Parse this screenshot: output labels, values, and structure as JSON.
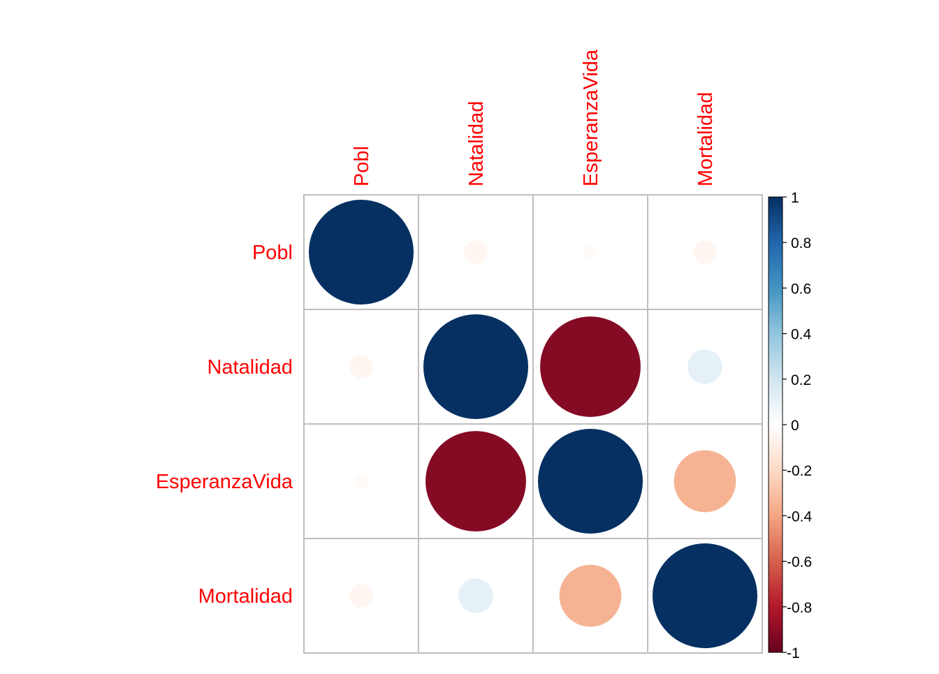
{
  "chart_data": {
    "type": "heatmap",
    "subtype": "correlation-circles",
    "variables": [
      "Pobl",
      "Natalidad",
      "EsperanzaVida",
      "Mortalidad"
    ],
    "matrix": [
      [
        1.0,
        -0.05,
        -0.02,
        -0.05
      ],
      [
        -0.05,
        1.0,
        -0.92,
        0.11
      ],
      [
        -0.02,
        -0.92,
        1.0,
        -0.35
      ],
      [
        -0.05,
        0.11,
        -0.35,
        1.0
      ]
    ],
    "label_color": "#FF0000",
    "grid_color": "#BEBEBE",
    "colorbar": {
      "range": [
        -1,
        1
      ],
      "ticks": [
        "1",
        "0.8",
        "0.6",
        "0.4",
        "0.2",
        "0",
        "-0.2",
        "-0.4",
        "-0.6",
        "-0.8",
        "-1"
      ],
      "tick_values": [
        1,
        0.8,
        0.6,
        0.4,
        0.2,
        0,
        -0.2,
        -0.4,
        -0.6,
        -0.8,
        -1
      ],
      "position": "right"
    },
    "palette": [
      {
        "v": -1.0,
        "c": "#67001F"
      },
      {
        "v": -0.8,
        "c": "#B2182B"
      },
      {
        "v": -0.6,
        "c": "#D6604D"
      },
      {
        "v": -0.4,
        "c": "#F4A582"
      },
      {
        "v": -0.2,
        "c": "#FDDBC7"
      },
      {
        "v": 0.0,
        "c": "#FFFFFF"
      },
      {
        "v": 0.2,
        "c": "#D1E5F0"
      },
      {
        "v": 0.4,
        "c": "#92C5DE"
      },
      {
        "v": 0.6,
        "c": "#4393C3"
      },
      {
        "v": 0.8,
        "c": "#2166AC"
      },
      {
        "v": 1.0,
        "c": "#053061"
      }
    ]
  }
}
